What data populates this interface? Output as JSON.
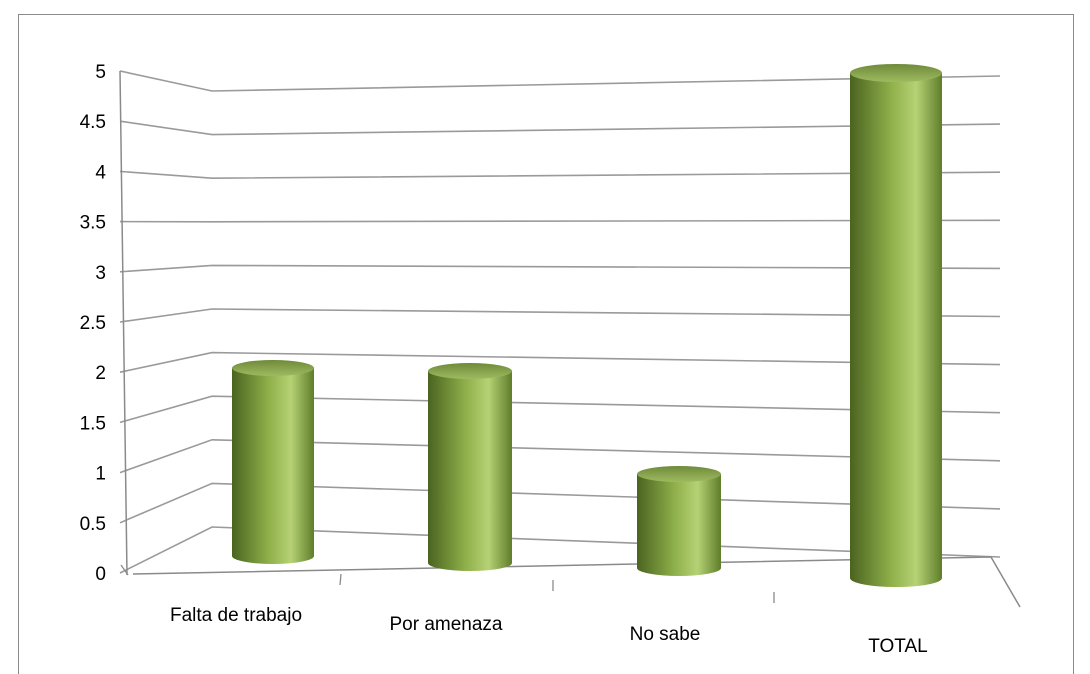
{
  "chart_data": {
    "type": "bar",
    "style": "3d-cylinder",
    "categories": [
      "Falta de trabajo",
      "Por amenaza",
      "No sabe",
      "TOTAL"
    ],
    "values": [
      2,
      2,
      1,
      5
    ],
    "title": "",
    "xlabel": "",
    "ylabel": "",
    "ylim": [
      0,
      5
    ],
    "yticks": [
      "0",
      "0.5",
      "1",
      "1.5",
      "2",
      "2.5",
      "3",
      "3.5",
      "4",
      "4.5",
      "5"
    ],
    "grid": true,
    "legend": "none",
    "colors": {
      "bar": "#8fb04a",
      "bar_dark": "#4e6b22",
      "bar_light": "#b5d171",
      "grid": "#9a9a9a"
    }
  }
}
